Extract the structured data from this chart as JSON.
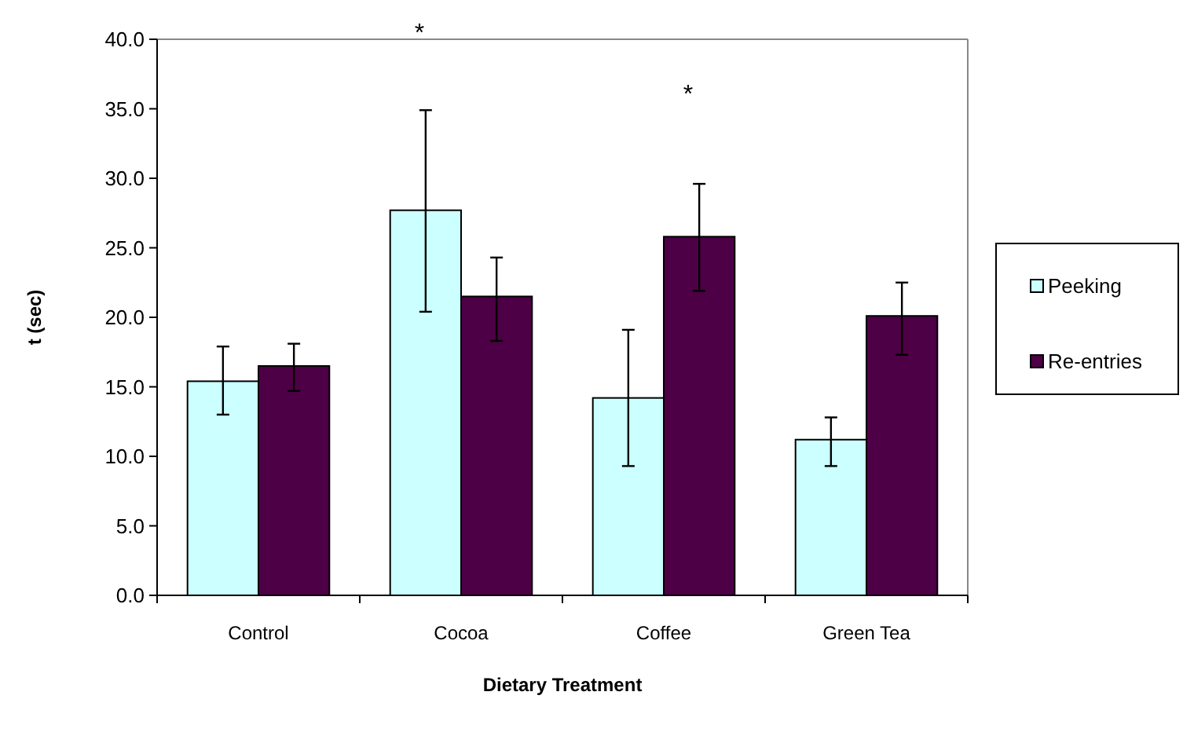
{
  "chart_data": {
    "type": "bar",
    "xlabel": "Dietary Treatment",
    "ylabel": "t (sec)",
    "categories": [
      "Control",
      "Cocoa",
      "Coffee",
      "Green Tea"
    ],
    "series": [
      {
        "name": "Peeking",
        "color": "#ccffff",
        "values": [
          15.4,
          27.7,
          14.2,
          11.2
        ],
        "errors": [
          [
            13.0,
            17.9
          ],
          [
            20.4,
            34.9
          ],
          [
            9.3,
            19.1
          ],
          [
            9.3,
            12.8
          ]
        ]
      },
      {
        "name": "Re-entries",
        "color": "#4d0045",
        "values": [
          16.5,
          21.5,
          25.8,
          20.1
        ],
        "errors": [
          [
            14.7,
            18.1
          ],
          [
            18.3,
            24.3
          ],
          [
            21.9,
            29.6
          ],
          [
            17.3,
            22.5
          ]
        ]
      }
    ],
    "ylim": [
      0,
      40
    ],
    "yticks": [
      {
        "value": 0,
        "label": "0.0"
      },
      {
        "value": 5,
        "label": "5.0"
      },
      {
        "value": 10,
        "label": "10.0"
      },
      {
        "value": 15,
        "label": "15.0"
      },
      {
        "value": 20,
        "label": "20.0"
      },
      {
        "value": 25,
        "label": "25.0"
      },
      {
        "value": 30,
        "label": "30.0"
      },
      {
        "value": 35,
        "label": "35.0"
      },
      {
        "value": 40,
        "label": "40.0"
      }
    ],
    "annotations": [
      "*",
      "*"
    ],
    "legend": "right",
    "grid": false
  }
}
